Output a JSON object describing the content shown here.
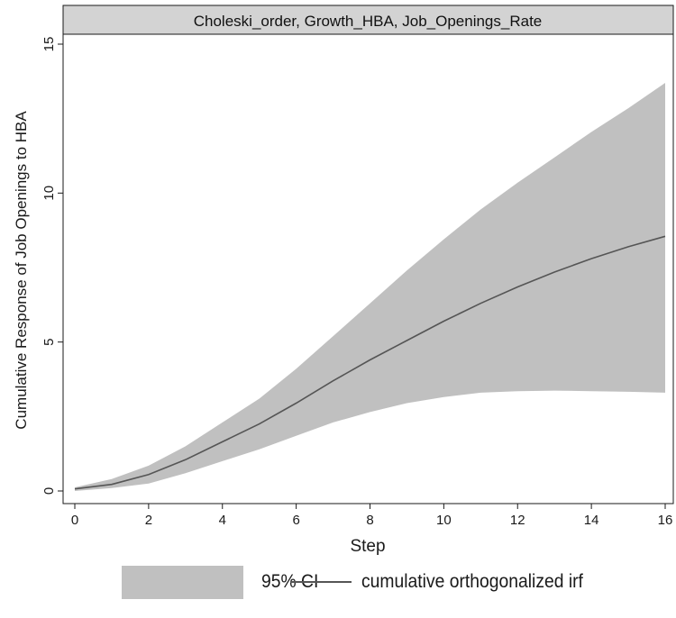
{
  "chart_data": {
    "type": "area",
    "panel_title": "Choleski_order, Growth_HBA, Job_Openings_Rate",
    "xlabel": "Step",
    "ylabel": "Cumulative Response of Job Openings to HBA",
    "xlim": [
      0,
      16
    ],
    "ylim": [
      0,
      15
    ],
    "x_ticks": [
      0,
      2,
      4,
      6,
      8,
      10,
      12,
      14,
      16
    ],
    "y_ticks": [
      0,
      5,
      10,
      15
    ],
    "grid": false,
    "legend_position": "bottom",
    "colors": {
      "ci_fill": "#c0c0c0",
      "irf_line": "#555555",
      "panel_header": "#d3d3d3"
    },
    "x": [
      0,
      1,
      2,
      3,
      4,
      5,
      6,
      7,
      8,
      9,
      10,
      11,
      12,
      13,
      14,
      15,
      16
    ],
    "series": [
      {
        "name": "cumulative orthogonalized irf",
        "values": [
          0.07,
          0.22,
          0.55,
          1.05,
          1.65,
          2.25,
          2.95,
          3.7,
          4.4,
          5.05,
          5.7,
          6.3,
          6.85,
          7.35,
          7.8,
          8.2,
          8.55
        ]
      },
      {
        "name": "95% CI",
        "lower": [
          0.0,
          0.1,
          0.25,
          0.6,
          1.0,
          1.4,
          1.85,
          2.3,
          2.65,
          2.95,
          3.15,
          3.3,
          3.35,
          3.37,
          3.35,
          3.33,
          3.3
        ],
        "upper": [
          0.12,
          0.4,
          0.85,
          1.5,
          2.3,
          3.1,
          4.1,
          5.2,
          6.3,
          7.4,
          8.45,
          9.45,
          10.35,
          11.2,
          12.05,
          12.85,
          13.7
        ]
      }
    ]
  }
}
